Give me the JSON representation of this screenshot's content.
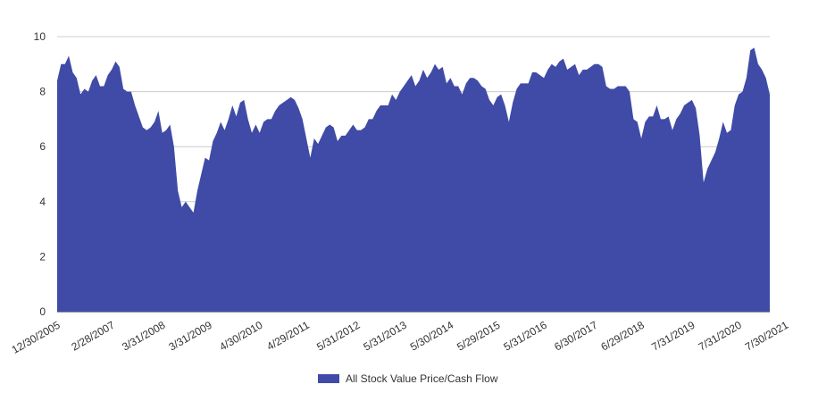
{
  "chart_data": {
    "type": "area",
    "title": "",
    "xlabel": "",
    "ylabel": "",
    "ylim": [
      0,
      10
    ],
    "y_ticks": [
      "0",
      "2",
      "4",
      "6",
      "8",
      "10"
    ],
    "x_ticks": [
      {
        "label": "12/30/2005",
        "index": 0
      },
      {
        "label": "2/28/2007",
        "index": 14
      },
      {
        "label": "3/31/2008",
        "index": 27
      },
      {
        "label": "3/31/2009",
        "index": 39
      },
      {
        "label": "4/30/2010",
        "index": 52
      },
      {
        "label": "4/29/2011",
        "index": 64
      },
      {
        "label": "5/31/2012",
        "index": 77
      },
      {
        "label": "5/31/2013",
        "index": 89
      },
      {
        "label": "5/30/2014",
        "index": 101
      },
      {
        "label": "5/29/2015",
        "index": 113
      },
      {
        "label": "5/31/2016",
        "index": 125
      },
      {
        "label": "6/30/2017",
        "index": 138
      },
      {
        "label": "6/29/2018",
        "index": 150
      },
      {
        "label": "7/31/2019",
        "index": 163
      },
      {
        "label": "7/31/2020",
        "index": 175
      },
      {
        "label": "7/30/2021",
        "index": 187
      }
    ],
    "grid": true,
    "legend_position": "bottom",
    "series": [
      {
        "name": "All Stock Value Price/Cash Flow",
        "color": "#3f4ba6",
        "values": [
          8.4,
          9.0,
          9.0,
          9.3,
          8.7,
          8.5,
          7.9,
          8.1,
          8.0,
          8.4,
          8.6,
          8.2,
          8.2,
          8.6,
          8.8,
          9.1,
          8.9,
          8.1,
          8.0,
          8.0,
          7.5,
          7.1,
          6.7,
          6.6,
          6.7,
          6.9,
          7.3,
          6.5,
          6.6,
          6.8,
          6.0,
          4.4,
          3.8,
          4.0,
          3.8,
          3.6,
          4.4,
          5.0,
          5.6,
          5.5,
          6.2,
          6.5,
          6.9,
          6.6,
          7.0,
          7.5,
          7.1,
          7.6,
          7.7,
          7.0,
          6.5,
          6.8,
          6.5,
          6.9,
          7.0,
          7.0,
          7.3,
          7.5,
          7.6,
          7.7,
          7.8,
          7.7,
          7.4,
          7.0,
          6.3,
          5.6,
          6.3,
          6.1,
          6.4,
          6.7,
          6.8,
          6.7,
          6.2,
          6.4,
          6.4,
          6.6,
          6.8,
          6.6,
          6.6,
          6.7,
          7.0,
          7.0,
          7.3,
          7.5,
          7.5,
          7.5,
          7.9,
          7.7,
          8.0,
          8.2,
          8.4,
          8.6,
          8.2,
          8.4,
          8.8,
          8.5,
          8.7,
          9.0,
          8.8,
          8.9,
          8.3,
          8.5,
          8.2,
          8.2,
          7.9,
          8.3,
          8.5,
          8.5,
          8.4,
          8.2,
          8.1,
          7.7,
          7.5,
          7.8,
          7.9,
          7.5,
          6.9,
          7.6,
          8.1,
          8.3,
          8.3,
          8.3,
          8.7,
          8.7,
          8.6,
          8.5,
          8.8,
          9.0,
          8.9,
          9.1,
          9.2,
          8.8,
          8.9,
          9.0,
          8.6,
          8.8,
          8.8,
          8.9,
          9.0,
          9.0,
          8.9,
          8.2,
          8.1,
          8.1,
          8.2,
          8.2,
          8.2,
          8.0,
          7.0,
          6.9,
          6.3,
          6.9,
          7.1,
          7.1,
          7.5,
          7.0,
          7.0,
          7.1,
          6.6,
          7.0,
          7.2,
          7.5,
          7.6,
          7.7,
          7.4,
          6.4,
          4.7,
          5.2,
          5.5,
          5.8,
          6.3,
          6.9,
          6.5,
          6.6,
          7.5,
          7.9,
          8.0,
          8.5,
          9.5,
          9.6,
          9.0,
          8.8,
          8.5,
          7.9
        ]
      }
    ]
  }
}
